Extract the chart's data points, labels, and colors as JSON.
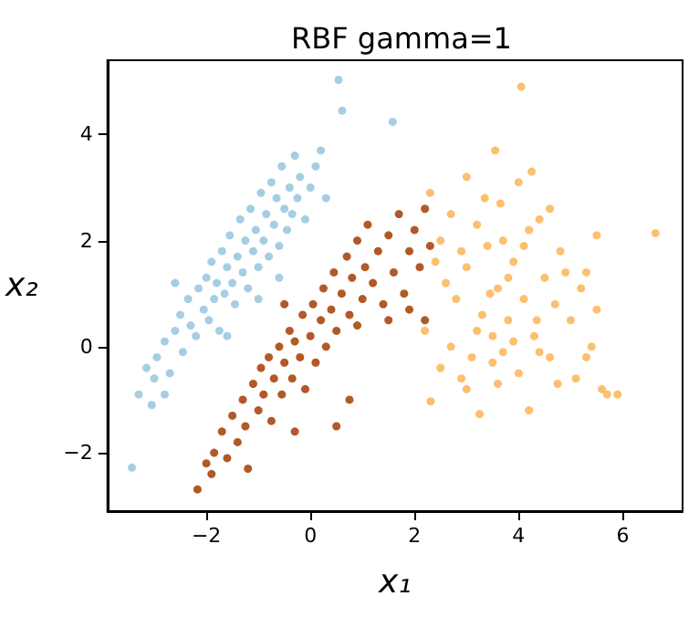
{
  "chart_data": {
    "type": "scatter",
    "title": "RBF gamma=1",
    "xlabel": "x₁",
    "ylabel": "x₂",
    "xlim": [
      -3.9,
      7.15
    ],
    "ylim": [
      -3.1,
      5.4
    ],
    "xticks": [
      -2,
      0,
      2,
      4,
      6
    ],
    "yticks": [
      -2,
      0,
      2,
      4
    ],
    "marker": "circle",
    "series": [
      {
        "color": "#a6cee3",
        "x": [
          -3.43,
          -3.3,
          -3.15,
          -3.0,
          -2.95,
          -2.8,
          -2.7,
          -2.6,
          -2.5,
          -2.45,
          -2.35,
          -2.3,
          -2.2,
          -2.15,
          -2.05,
          -2.0,
          -1.95,
          -1.9,
          -1.85,
          -1.8,
          -1.75,
          -1.7,
          -1.65,
          -1.6,
          -1.55,
          -1.5,
          -1.45,
          -1.4,
          -1.35,
          -1.3,
          -1.25,
          -1.2,
          -1.15,
          -1.1,
          -1.05,
          -1.0,
          -0.95,
          -0.9,
          -0.85,
          -0.8,
          -0.75,
          -0.7,
          -0.65,
          -0.6,
          -0.55,
          -0.5,
          -0.45,
          -0.4,
          -0.35,
          -0.3,
          -0.25,
          -0.2,
          -0.1,
          0.0,
          0.1,
          0.2,
          0.3,
          0.54,
          0.61,
          1.58,
          -2.8,
          -3.05,
          -2.6,
          -1.6,
          -1.0,
          -0.6
        ],
        "values": [
          -2.28,
          -0.9,
          -0.4,
          -0.6,
          -0.2,
          0.1,
          -0.5,
          0.3,
          0.6,
          -0.1,
          0.9,
          0.4,
          0.2,
          1.1,
          0.7,
          1.3,
          0.5,
          1.6,
          0.9,
          1.2,
          0.3,
          1.8,
          1.0,
          1.5,
          2.1,
          1.2,
          0.8,
          1.7,
          2.4,
          1.4,
          2.0,
          1.1,
          2.6,
          1.8,
          2.2,
          1.5,
          2.9,
          2.0,
          2.5,
          1.7,
          3.1,
          2.3,
          2.8,
          1.9,
          3.4,
          2.6,
          2.2,
          3.0,
          2.5,
          3.6,
          2.8,
          3.2,
          2.4,
          3.0,
          3.4,
          3.7,
          2.8,
          5.03,
          4.45,
          4.24,
          -0.9,
          -1.1,
          1.2,
          0.2,
          0.9,
          1.3
        ]
      },
      {
        "color": "#b15928",
        "x": [
          -2.17,
          -2.0,
          -1.9,
          -1.85,
          -1.7,
          -1.6,
          -1.5,
          -1.4,
          -1.3,
          -1.25,
          -1.1,
          -1.0,
          -0.95,
          -0.9,
          -0.8,
          -0.75,
          -0.7,
          -0.6,
          -0.55,
          -0.5,
          -0.4,
          -0.35,
          -0.3,
          -0.2,
          -0.15,
          -0.1,
          0.0,
          0.05,
          0.1,
          0.2,
          0.25,
          0.3,
          0.4,
          0.45,
          0.5,
          0.6,
          0.7,
          0.75,
          0.8,
          0.9,
          1.0,
          1.05,
          1.1,
          1.2,
          1.3,
          1.4,
          1.5,
          1.6,
          1.7,
          1.8,
          1.9,
          2.0,
          2.1,
          2.2,
          2.3,
          1.9,
          2.2,
          0.75,
          0.5,
          -0.3,
          -1.2,
          -0.5,
          0.9,
          1.5
        ],
        "values": [
          -2.69,
          -2.2,
          -2.4,
          -2.0,
          -1.6,
          -2.1,
          -1.3,
          -1.8,
          -1.0,
          -1.5,
          -0.7,
          -1.2,
          -0.4,
          -0.9,
          -0.2,
          -1.4,
          -0.6,
          0.0,
          -0.9,
          -0.3,
          0.3,
          -0.6,
          0.1,
          -0.2,
          0.6,
          -0.8,
          0.2,
          0.8,
          -0.3,
          0.5,
          1.1,
          0.0,
          0.7,
          1.4,
          0.3,
          1.0,
          1.7,
          0.6,
          1.3,
          2.0,
          0.9,
          1.5,
          2.3,
          1.2,
          1.8,
          0.8,
          2.1,
          1.4,
          2.5,
          1.0,
          1.8,
          2.2,
          1.5,
          2.6,
          1.9,
          0.7,
          0.5,
          -1.0,
          -1.5,
          -1.6,
          -2.3,
          0.8,
          0.4,
          0.5
        ]
      },
      {
        "color": "#fdbf6f",
        "x": [
          4.05,
          6.63,
          3.25,
          2.31,
          3.0,
          3.35,
          2.7,
          4.0,
          4.4,
          5.5,
          5.3,
          2.4,
          2.6,
          2.8,
          3.0,
          3.2,
          3.4,
          3.5,
          3.6,
          3.7,
          3.8,
          3.9,
          4.0,
          4.1,
          4.2,
          4.3,
          4.5,
          4.6,
          4.7,
          4.8,
          5.0,
          5.1,
          5.2,
          5.4,
          5.6,
          5.7,
          5.5,
          2.2,
          2.5,
          2.7,
          2.9,
          3.1,
          3.3,
          3.5,
          3.7,
          3.9,
          4.2,
          4.4,
          3.6,
          3.0,
          3.8,
          4.1,
          2.5,
          4.6,
          3.2,
          4.9,
          5.3,
          2.9,
          3.45,
          4.35,
          3.65,
          4.25,
          2.3,
          3.55,
          4.75,
          5.9
        ],
        "values": [
          4.9,
          2.14,
          -1.27,
          -1.03,
          3.2,
          2.8,
          2.5,
          3.1,
          2.4,
          2.1,
          1.4,
          1.6,
          1.2,
          0.9,
          1.5,
          0.3,
          1.9,
          -0.3,
          1.1,
          2.0,
          0.5,
          1.6,
          -0.5,
          0.9,
          2.2,
          0.2,
          1.3,
          -0.2,
          0.8,
          1.8,
          0.5,
          -0.6,
          1.1,
          0.0,
          -0.8,
          -0.9,
          0.7,
          0.3,
          -0.4,
          0.0,
          -0.6,
          -0.2,
          0.6,
          0.2,
          -0.1,
          0.1,
          -1.2,
          -0.1,
          -0.7,
          -0.8,
          1.3,
          1.9,
          2.0,
          2.6,
          2.3,
          1.4,
          -0.2,
          1.8,
          1.0,
          0.5,
          2.7,
          3.3,
          2.9,
          3.7,
          -0.7,
          -0.9
        ]
      }
    ]
  }
}
